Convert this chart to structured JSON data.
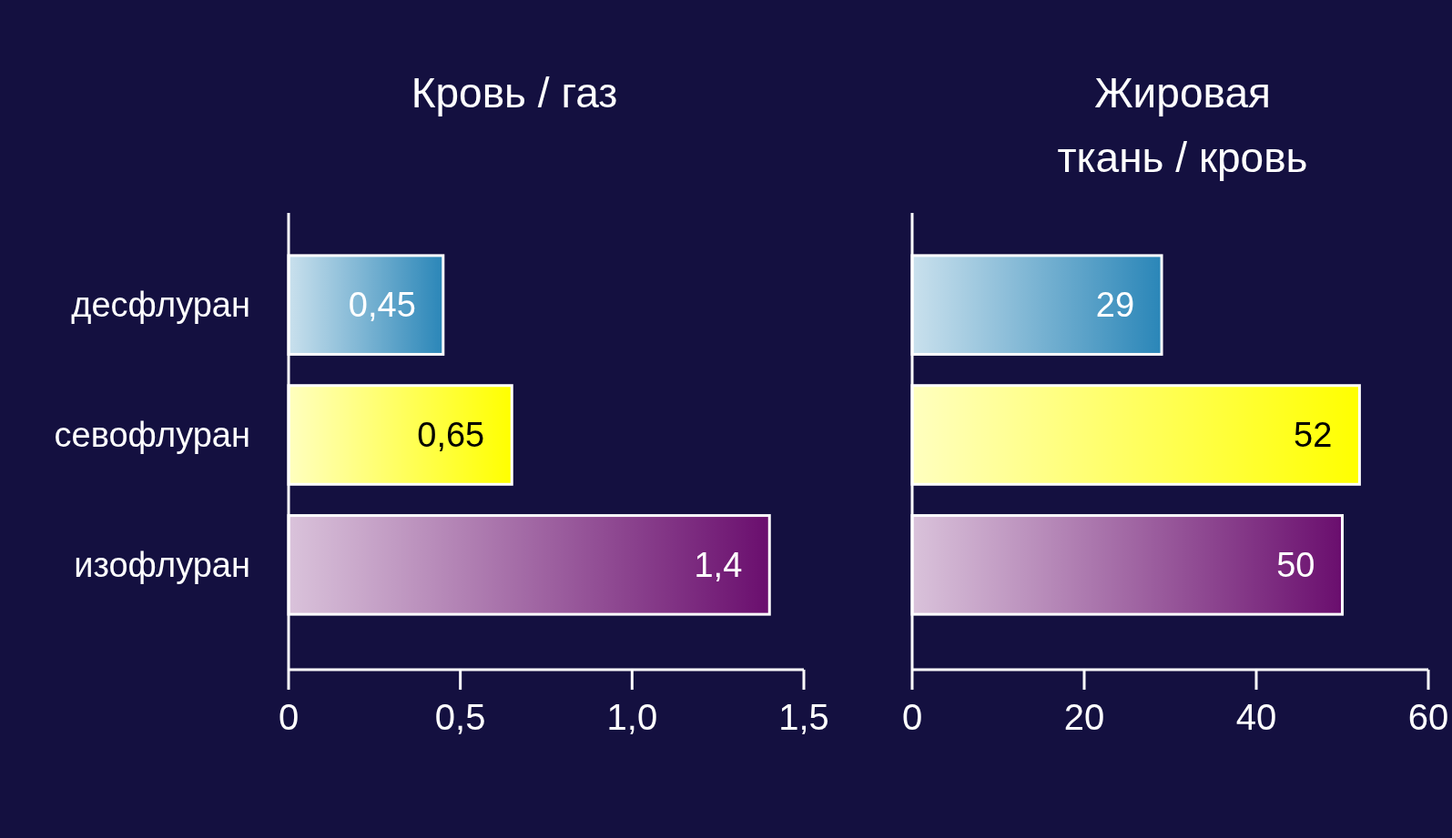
{
  "chart_data": [
    {
      "type": "bar",
      "orientation": "horizontal",
      "title": "Кровь / газ",
      "categories": [
        "десфлуран",
        "севофлуран",
        "изофлуран"
      ],
      "values": [
        0.45,
        0.65,
        1.4
      ],
      "value_labels": [
        "0,45",
        "0,65",
        "1,4"
      ],
      "colors": [
        "#2a86b8",
        "#ffff00",
        "#6a0e6e"
      ],
      "xlim": [
        0,
        1.5
      ],
      "xticks": [
        0,
        {
          "value": 0.5,
          "label": "0,5"
        },
        {
          "value": 1.0,
          "label": "1,0"
        },
        {
          "value": 1.5,
          "label": "1,5"
        }
      ],
      "grid": false,
      "legend": false
    },
    {
      "type": "bar",
      "orientation": "horizontal",
      "title": "Жировая\nткань / кровь",
      "categories": [
        null,
        null,
        null
      ],
      "values": [
        29,
        52,
        50
      ],
      "data_labels": true,
      "colors": [
        "#2a86b8",
        "#ffff00",
        "#6a0e6e"
      ],
      "xlim": [
        0,
        60
      ],
      "xticks": [
        0,
        20,
        40,
        60
      ],
      "tick_labels": "x",
      "grid": false,
      "legend": false
    }
  ]
}
